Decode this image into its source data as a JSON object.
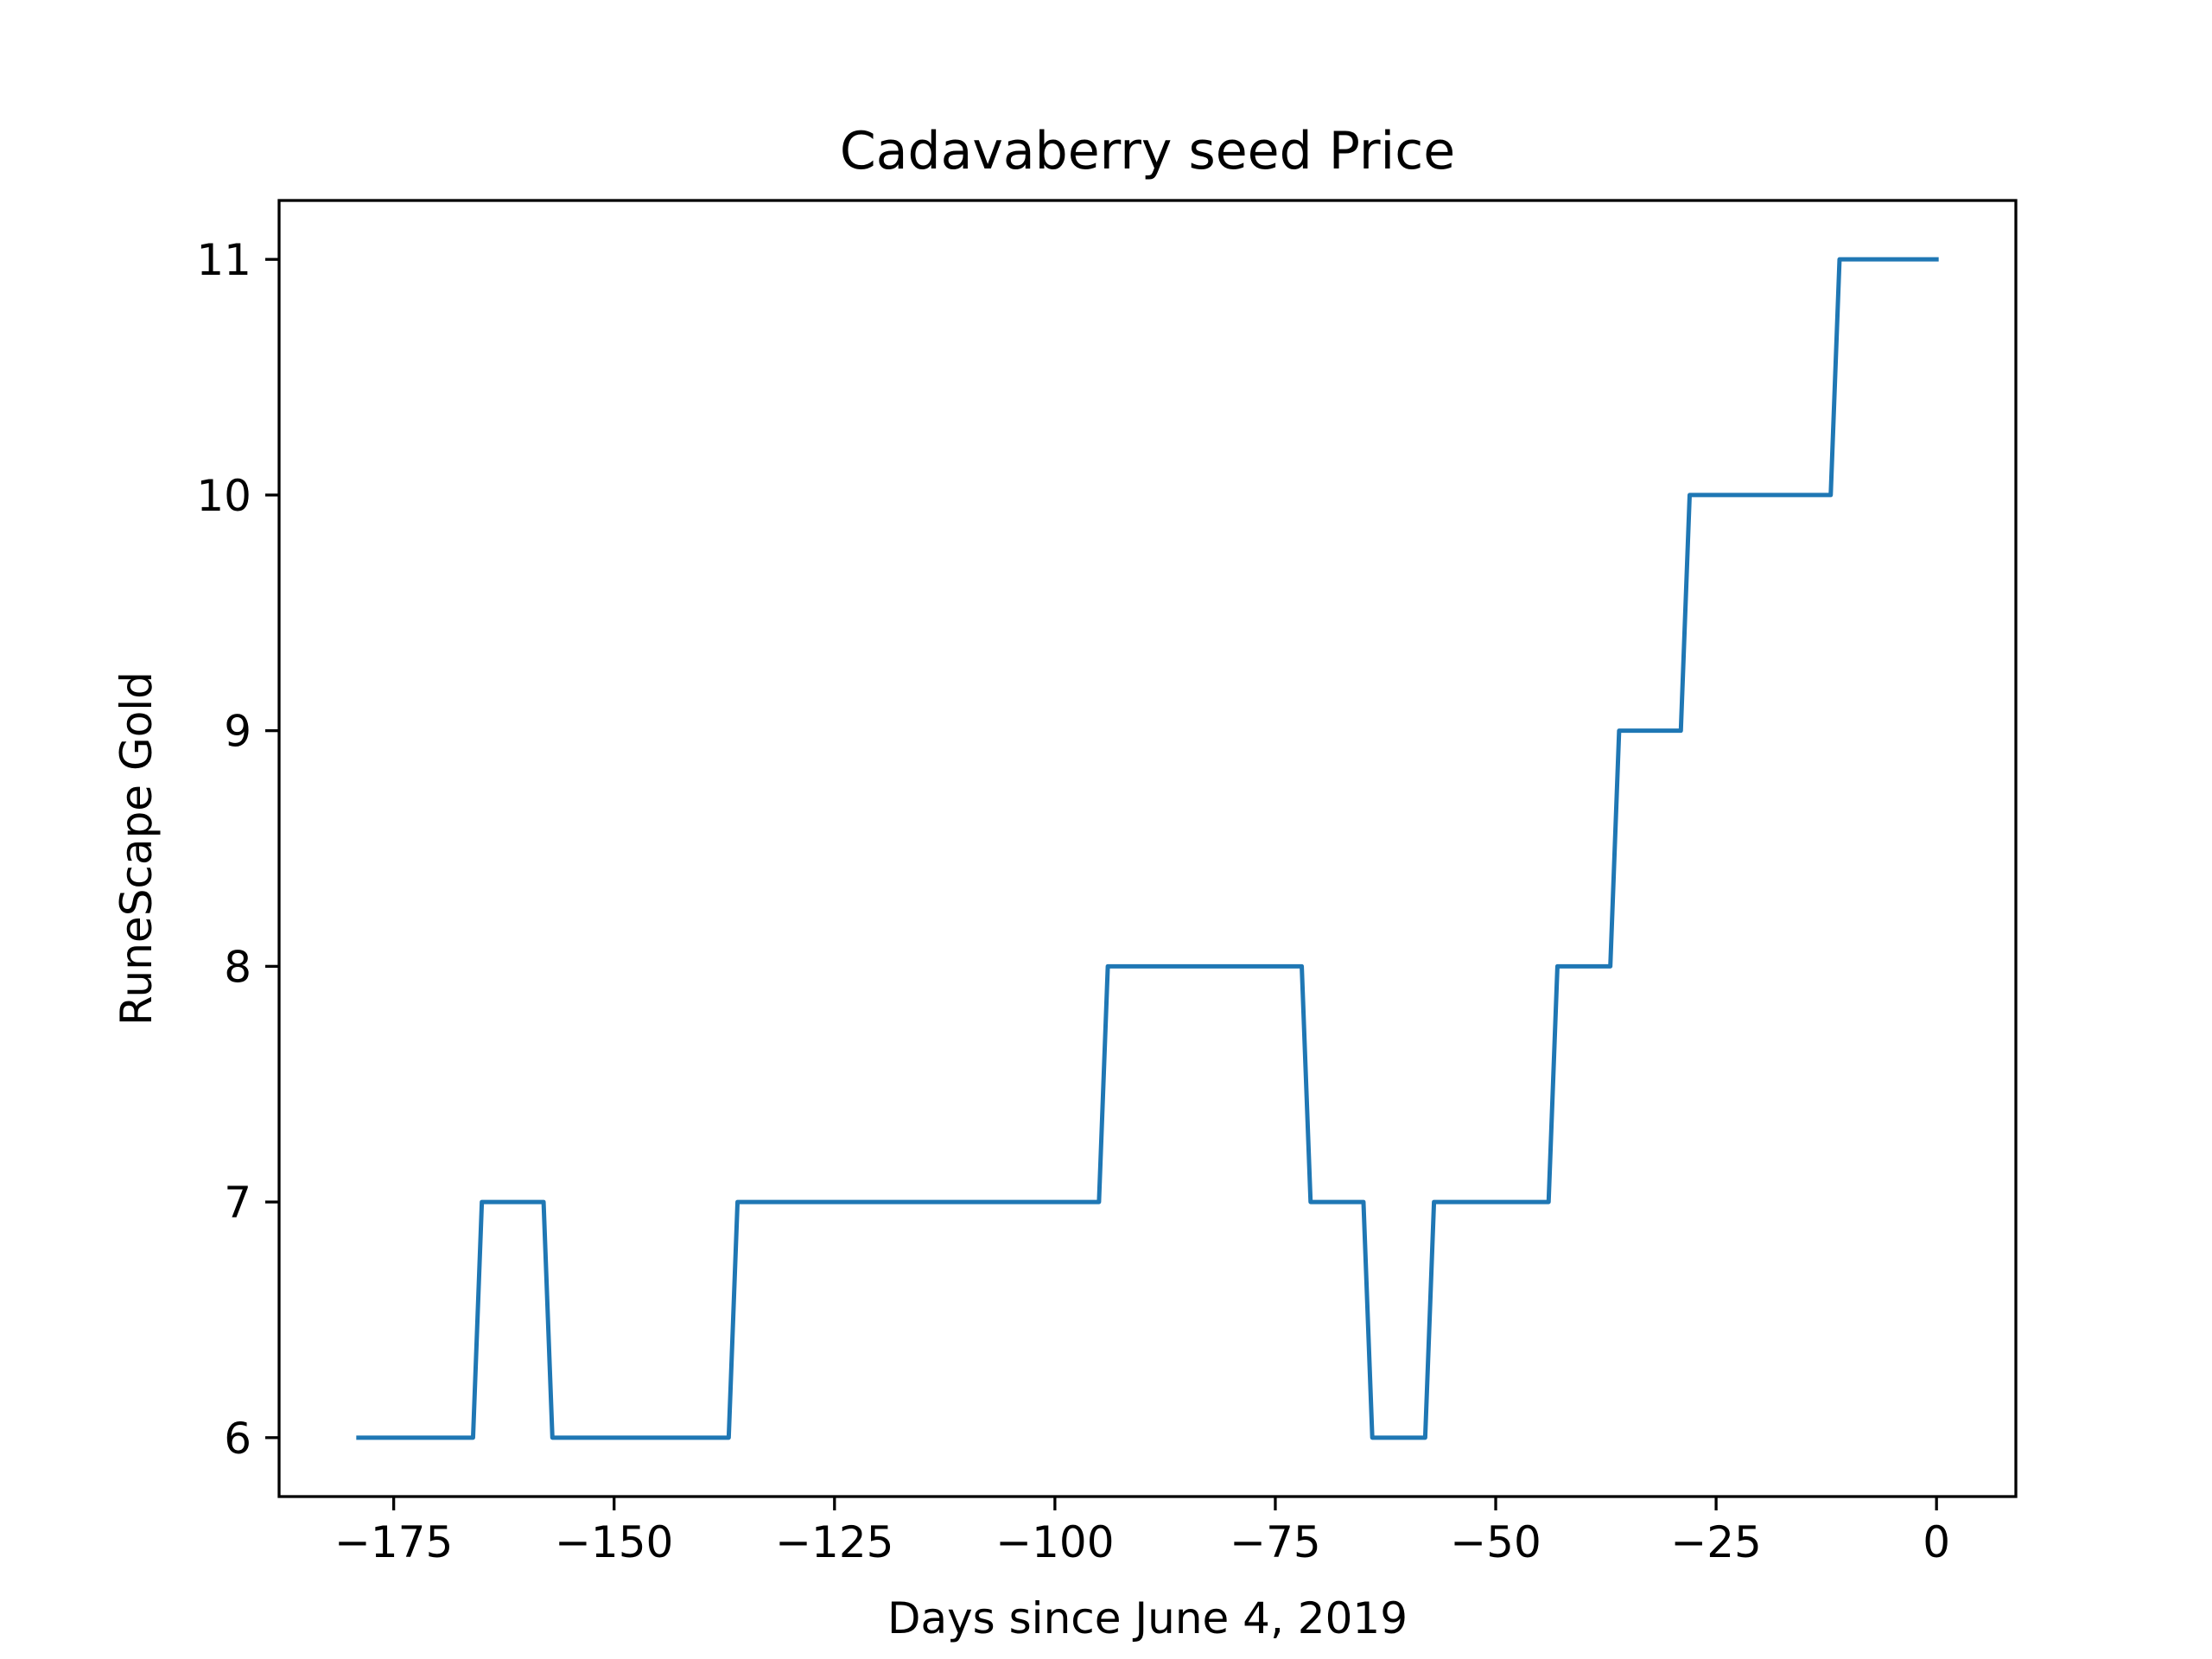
{
  "chart_data": {
    "type": "line",
    "title": "Cadavaberry seed Price",
    "xlabel": "Days since June 4, 2019",
    "ylabel": "RuneScape Gold",
    "xlim": [
      -188,
      9
    ],
    "ylim": [
      5.75,
      11.25
    ],
    "xticks": [
      -175,
      -150,
      -125,
      -100,
      -75,
      -50,
      -25,
      0
    ],
    "xtick_labels": [
      "−175",
      "−150",
      "−125",
      "−100",
      "−75",
      "−50",
      "−25",
      "0"
    ],
    "yticks": [
      6,
      7,
      8,
      9,
      10,
      11
    ],
    "ytick_labels": [
      "6",
      "7",
      "8",
      "9",
      "10",
      "11"
    ],
    "grid": false,
    "legend": false,
    "color": "#1f77b4",
    "series": [
      {
        "x": [
          -179,
          -166,
          -165,
          -158,
          -157,
          -137,
          -136,
          -95,
          -94,
          -72,
          -71,
          -65,
          -64,
          -58,
          -57,
          -44,
          -43,
          -37,
          -36,
          -29,
          -28,
          -12,
          -11,
          0
        ],
        "y": [
          6,
          6,
          7,
          7,
          6,
          6,
          7,
          7,
          8,
          8,
          7,
          7,
          6,
          6,
          7,
          7,
          8,
          8,
          9,
          9,
          10,
          10,
          11,
          11
        ]
      }
    ]
  }
}
